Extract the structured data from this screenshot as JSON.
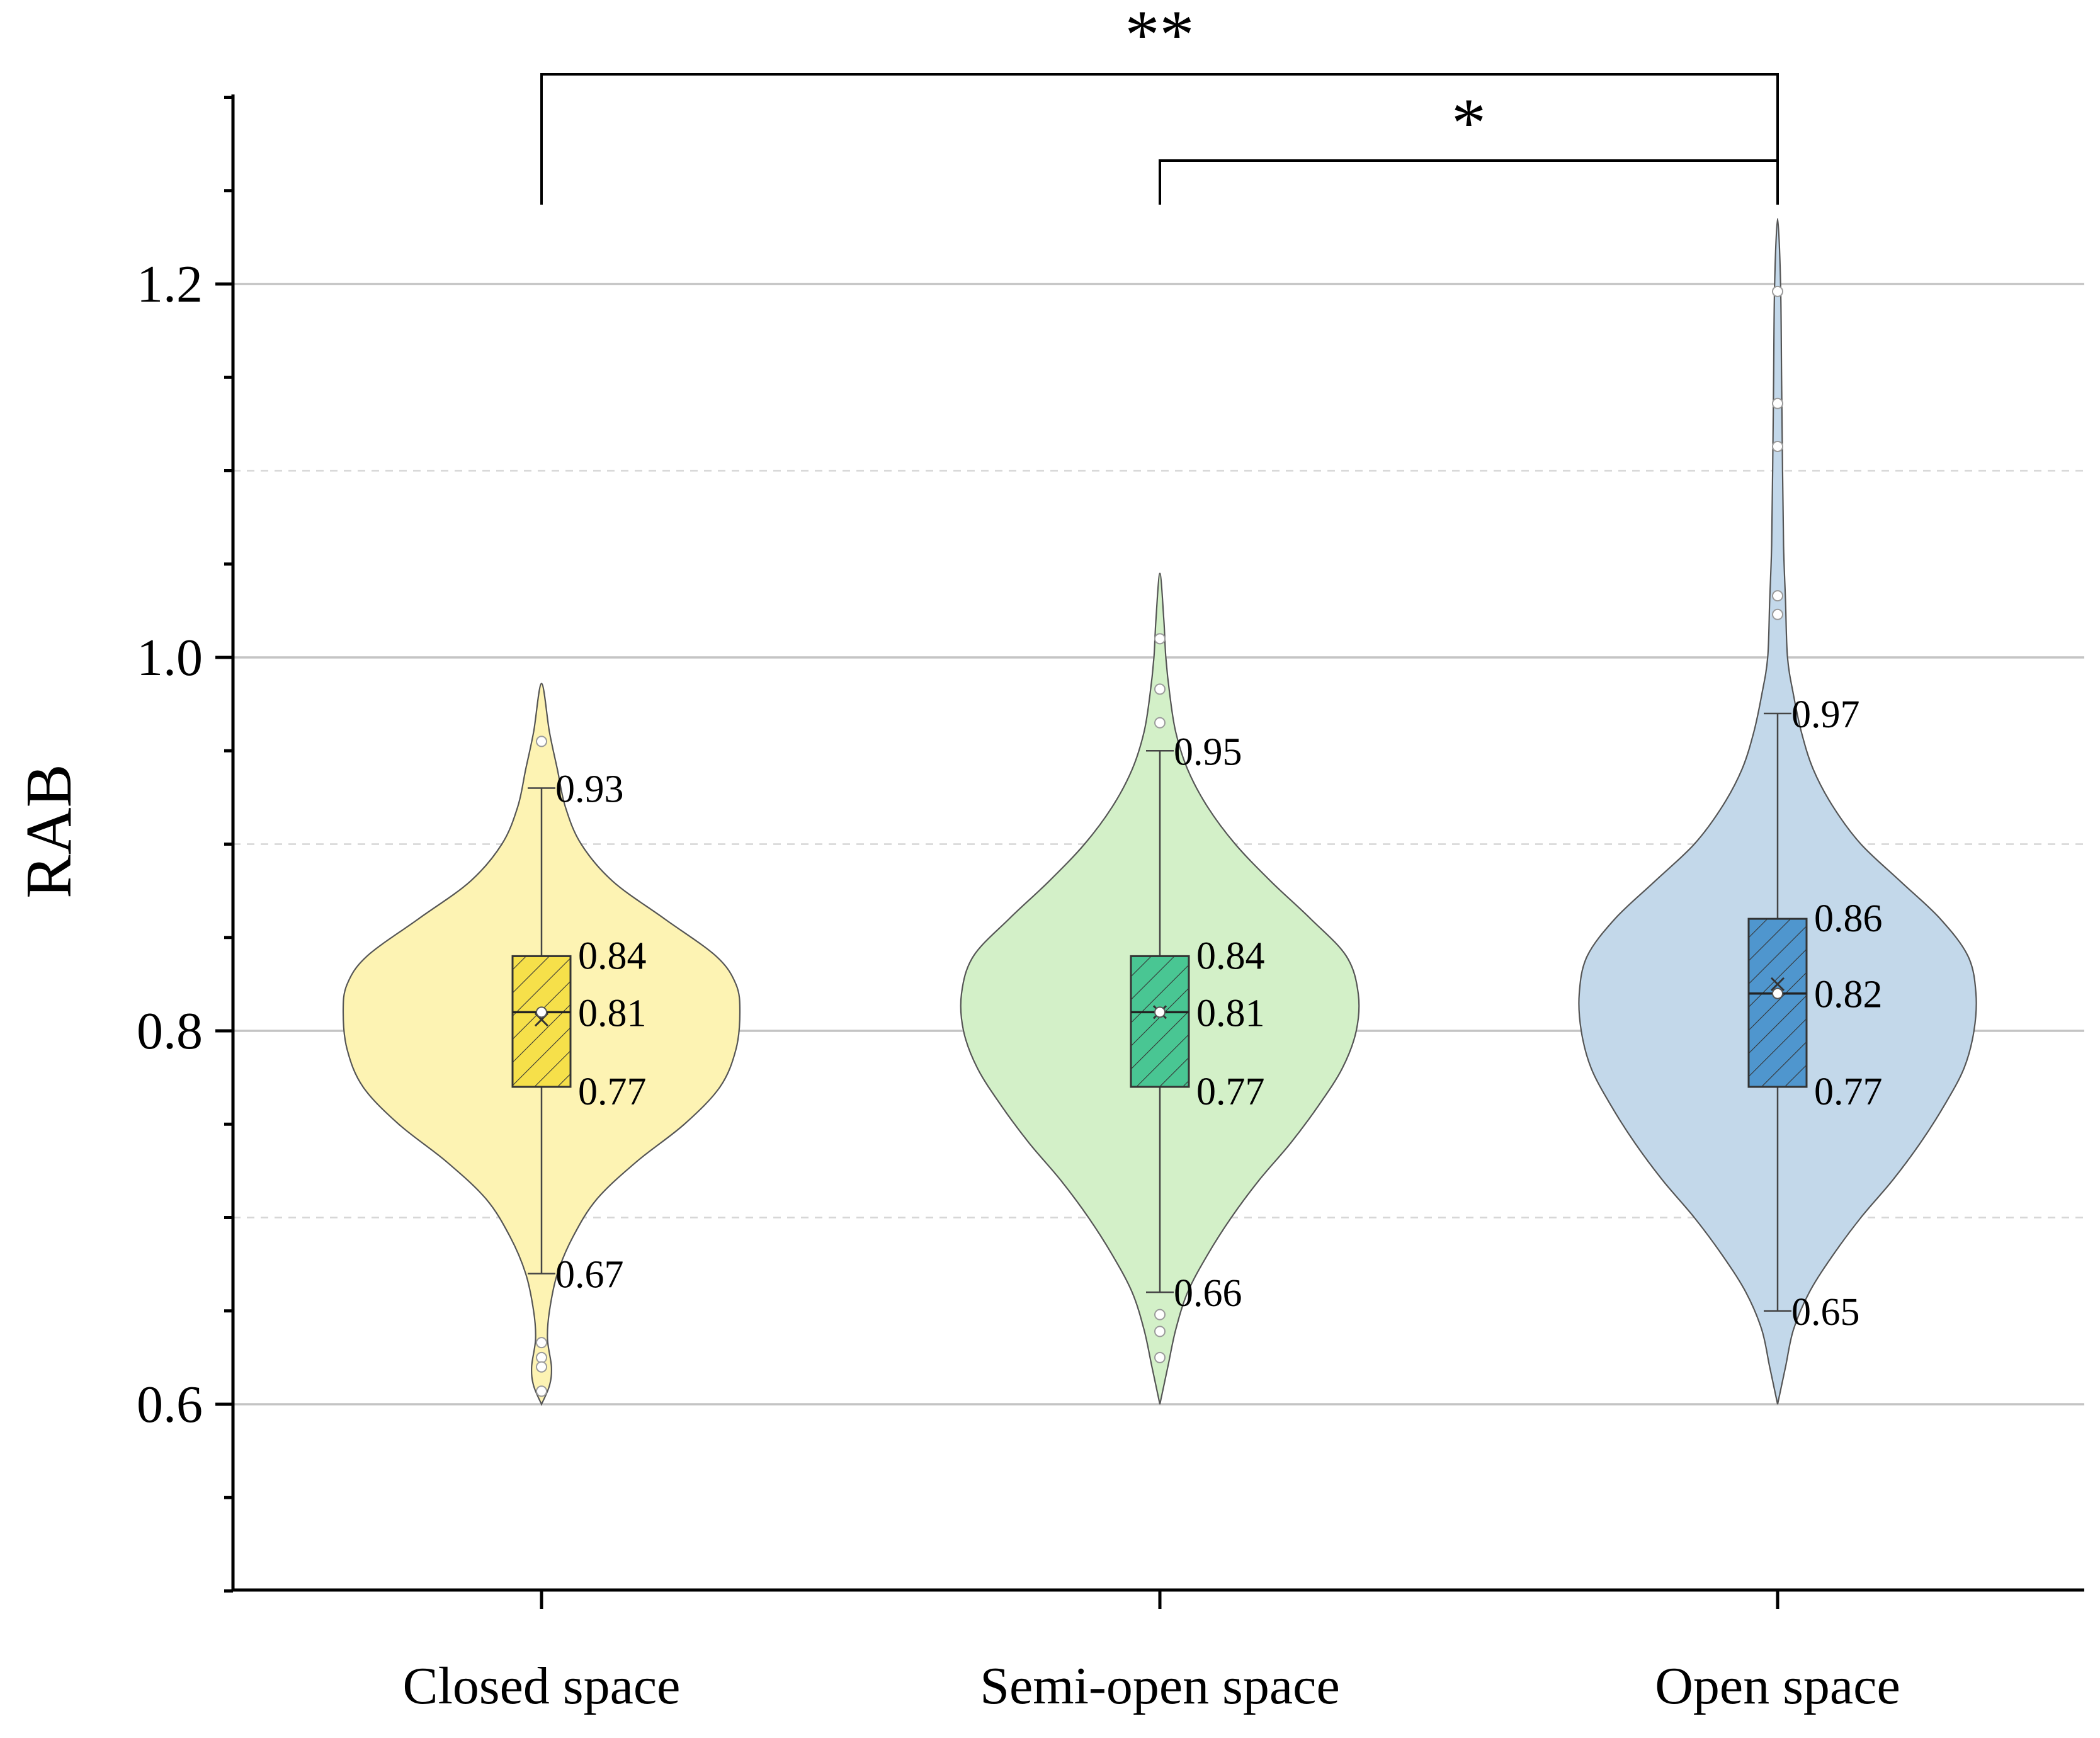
{
  "chart_data": {
    "type": "violin",
    "title": "",
    "xlabel": "",
    "ylabel": "RAB",
    "ylim": [
      0.5,
      1.3
    ],
    "yticks": [
      "0.6",
      "0.8",
      "1.0",
      "1.2"
    ],
    "grid": true,
    "categories": [
      "Closed space",
      "Semi-open space",
      "Open space"
    ],
    "colors": {
      "Closed space": {
        "fill": "#fdf3b3",
        "box": "#f6e04a"
      },
      "Semi-open space": {
        "fill": "#d3f0c8",
        "box": "#49c693"
      },
      "Open space": {
        "fill": "#c3d8ea",
        "box": "#4f96ce"
      }
    },
    "groups": [
      {
        "category": "Closed space",
        "whisker_high": 0.93,
        "q3": 0.84,
        "median": 0.81,
        "q1": 0.77,
        "whisker_low": 0.67,
        "labels": {
          "whisker_high": "0.93",
          "q3": "0.84",
          "median": "0.81",
          "q1": "0.77",
          "whisker_low": "0.67"
        },
        "mean": 0.806,
        "min": 0.6,
        "max": 0.986,
        "outliers": [
          0.955,
          0.633,
          0.625,
          0.62,
          0.607
        ],
        "density": [
          [
            0.6,
            0
          ],
          [
            0.61,
            0.04
          ],
          [
            0.62,
            0.05
          ],
          [
            0.635,
            0.03
          ],
          [
            0.65,
            0.04
          ],
          [
            0.67,
            0.08
          ],
          [
            0.69,
            0.16
          ],
          [
            0.71,
            0.28
          ],
          [
            0.73,
            0.48
          ],
          [
            0.75,
            0.72
          ],
          [
            0.77,
            0.9
          ],
          [
            0.79,
            0.98
          ],
          [
            0.81,
            1.0
          ],
          [
            0.825,
            0.98
          ],
          [
            0.84,
            0.88
          ],
          [
            0.86,
            0.62
          ],
          [
            0.88,
            0.36
          ],
          [
            0.9,
            0.2
          ],
          [
            0.92,
            0.12
          ],
          [
            0.94,
            0.08
          ],
          [
            0.96,
            0.04
          ],
          [
            0.986,
            0
          ]
        ]
      },
      {
        "category": "Semi-open space",
        "whisker_high": 0.95,
        "q3": 0.84,
        "median": 0.81,
        "q1": 0.77,
        "whisker_low": 0.66,
        "labels": {
          "whisker_high": "0.95",
          "q3": "0.84",
          "median": "0.81",
          "q1": "0.77",
          "whisker_low": "0.66"
        },
        "mean": 0.81,
        "min": 0.6,
        "max": 1.045,
        "outliers": [
          1.01,
          0.983,
          0.965,
          0.648,
          0.639,
          0.625
        ],
        "density": [
          [
            0.6,
            0
          ],
          [
            0.62,
            0.04
          ],
          [
            0.64,
            0.08
          ],
          [
            0.66,
            0.14
          ],
          [
            0.68,
            0.24
          ],
          [
            0.7,
            0.36
          ],
          [
            0.72,
            0.5
          ],
          [
            0.74,
            0.66
          ],
          [
            0.76,
            0.8
          ],
          [
            0.78,
            0.92
          ],
          [
            0.8,
            0.99
          ],
          [
            0.82,
            1.0
          ],
          [
            0.84,
            0.94
          ],
          [
            0.86,
            0.76
          ],
          [
            0.88,
            0.56
          ],
          [
            0.9,
            0.38
          ],
          [
            0.92,
            0.24
          ],
          [
            0.94,
            0.14
          ],
          [
            0.96,
            0.08
          ],
          [
            0.98,
            0.05
          ],
          [
            1.0,
            0.03
          ],
          [
            1.02,
            0.02
          ],
          [
            1.045,
            0
          ]
        ]
      },
      {
        "category": "Open space",
        "whisker_high": 0.97,
        "q3": 0.86,
        "median": 0.82,
        "q1": 0.77,
        "whisker_low": 0.65,
        "labels": {
          "whisker_high": "0.97",
          "q3": "0.86",
          "median": "0.82",
          "q1": "0.77",
          "whisker_low": "0.65"
        },
        "mean": 0.825,
        "min": 0.6,
        "max": 1.235,
        "outliers": [
          1.196,
          1.136,
          1.113,
          1.033,
          1.023
        ],
        "density": [
          [
            0.6,
            0
          ],
          [
            0.62,
            0.04
          ],
          [
            0.64,
            0.08
          ],
          [
            0.66,
            0.16
          ],
          [
            0.68,
            0.28
          ],
          [
            0.7,
            0.42
          ],
          [
            0.72,
            0.58
          ],
          [
            0.74,
            0.72
          ],
          [
            0.76,
            0.84
          ],
          [
            0.78,
            0.94
          ],
          [
            0.8,
            0.99
          ],
          [
            0.82,
            1.0
          ],
          [
            0.84,
            0.96
          ],
          [
            0.86,
            0.82
          ],
          [
            0.88,
            0.62
          ],
          [
            0.9,
            0.42
          ],
          [
            0.92,
            0.28
          ],
          [
            0.94,
            0.18
          ],
          [
            0.96,
            0.12
          ],
          [
            0.98,
            0.08
          ],
          [
            1.0,
            0.05
          ],
          [
            1.03,
            0.04
          ],
          [
            1.06,
            0.03
          ],
          [
            1.1,
            0.025
          ],
          [
            1.15,
            0.02
          ],
          [
            1.2,
            0.015
          ],
          [
            1.235,
            0
          ]
        ]
      }
    ],
    "significance": [
      {
        "from": "Closed space",
        "to": "Open space",
        "label": "**"
      },
      {
        "from": "Semi-open space",
        "to": "Open space",
        "label": "*"
      }
    ]
  }
}
